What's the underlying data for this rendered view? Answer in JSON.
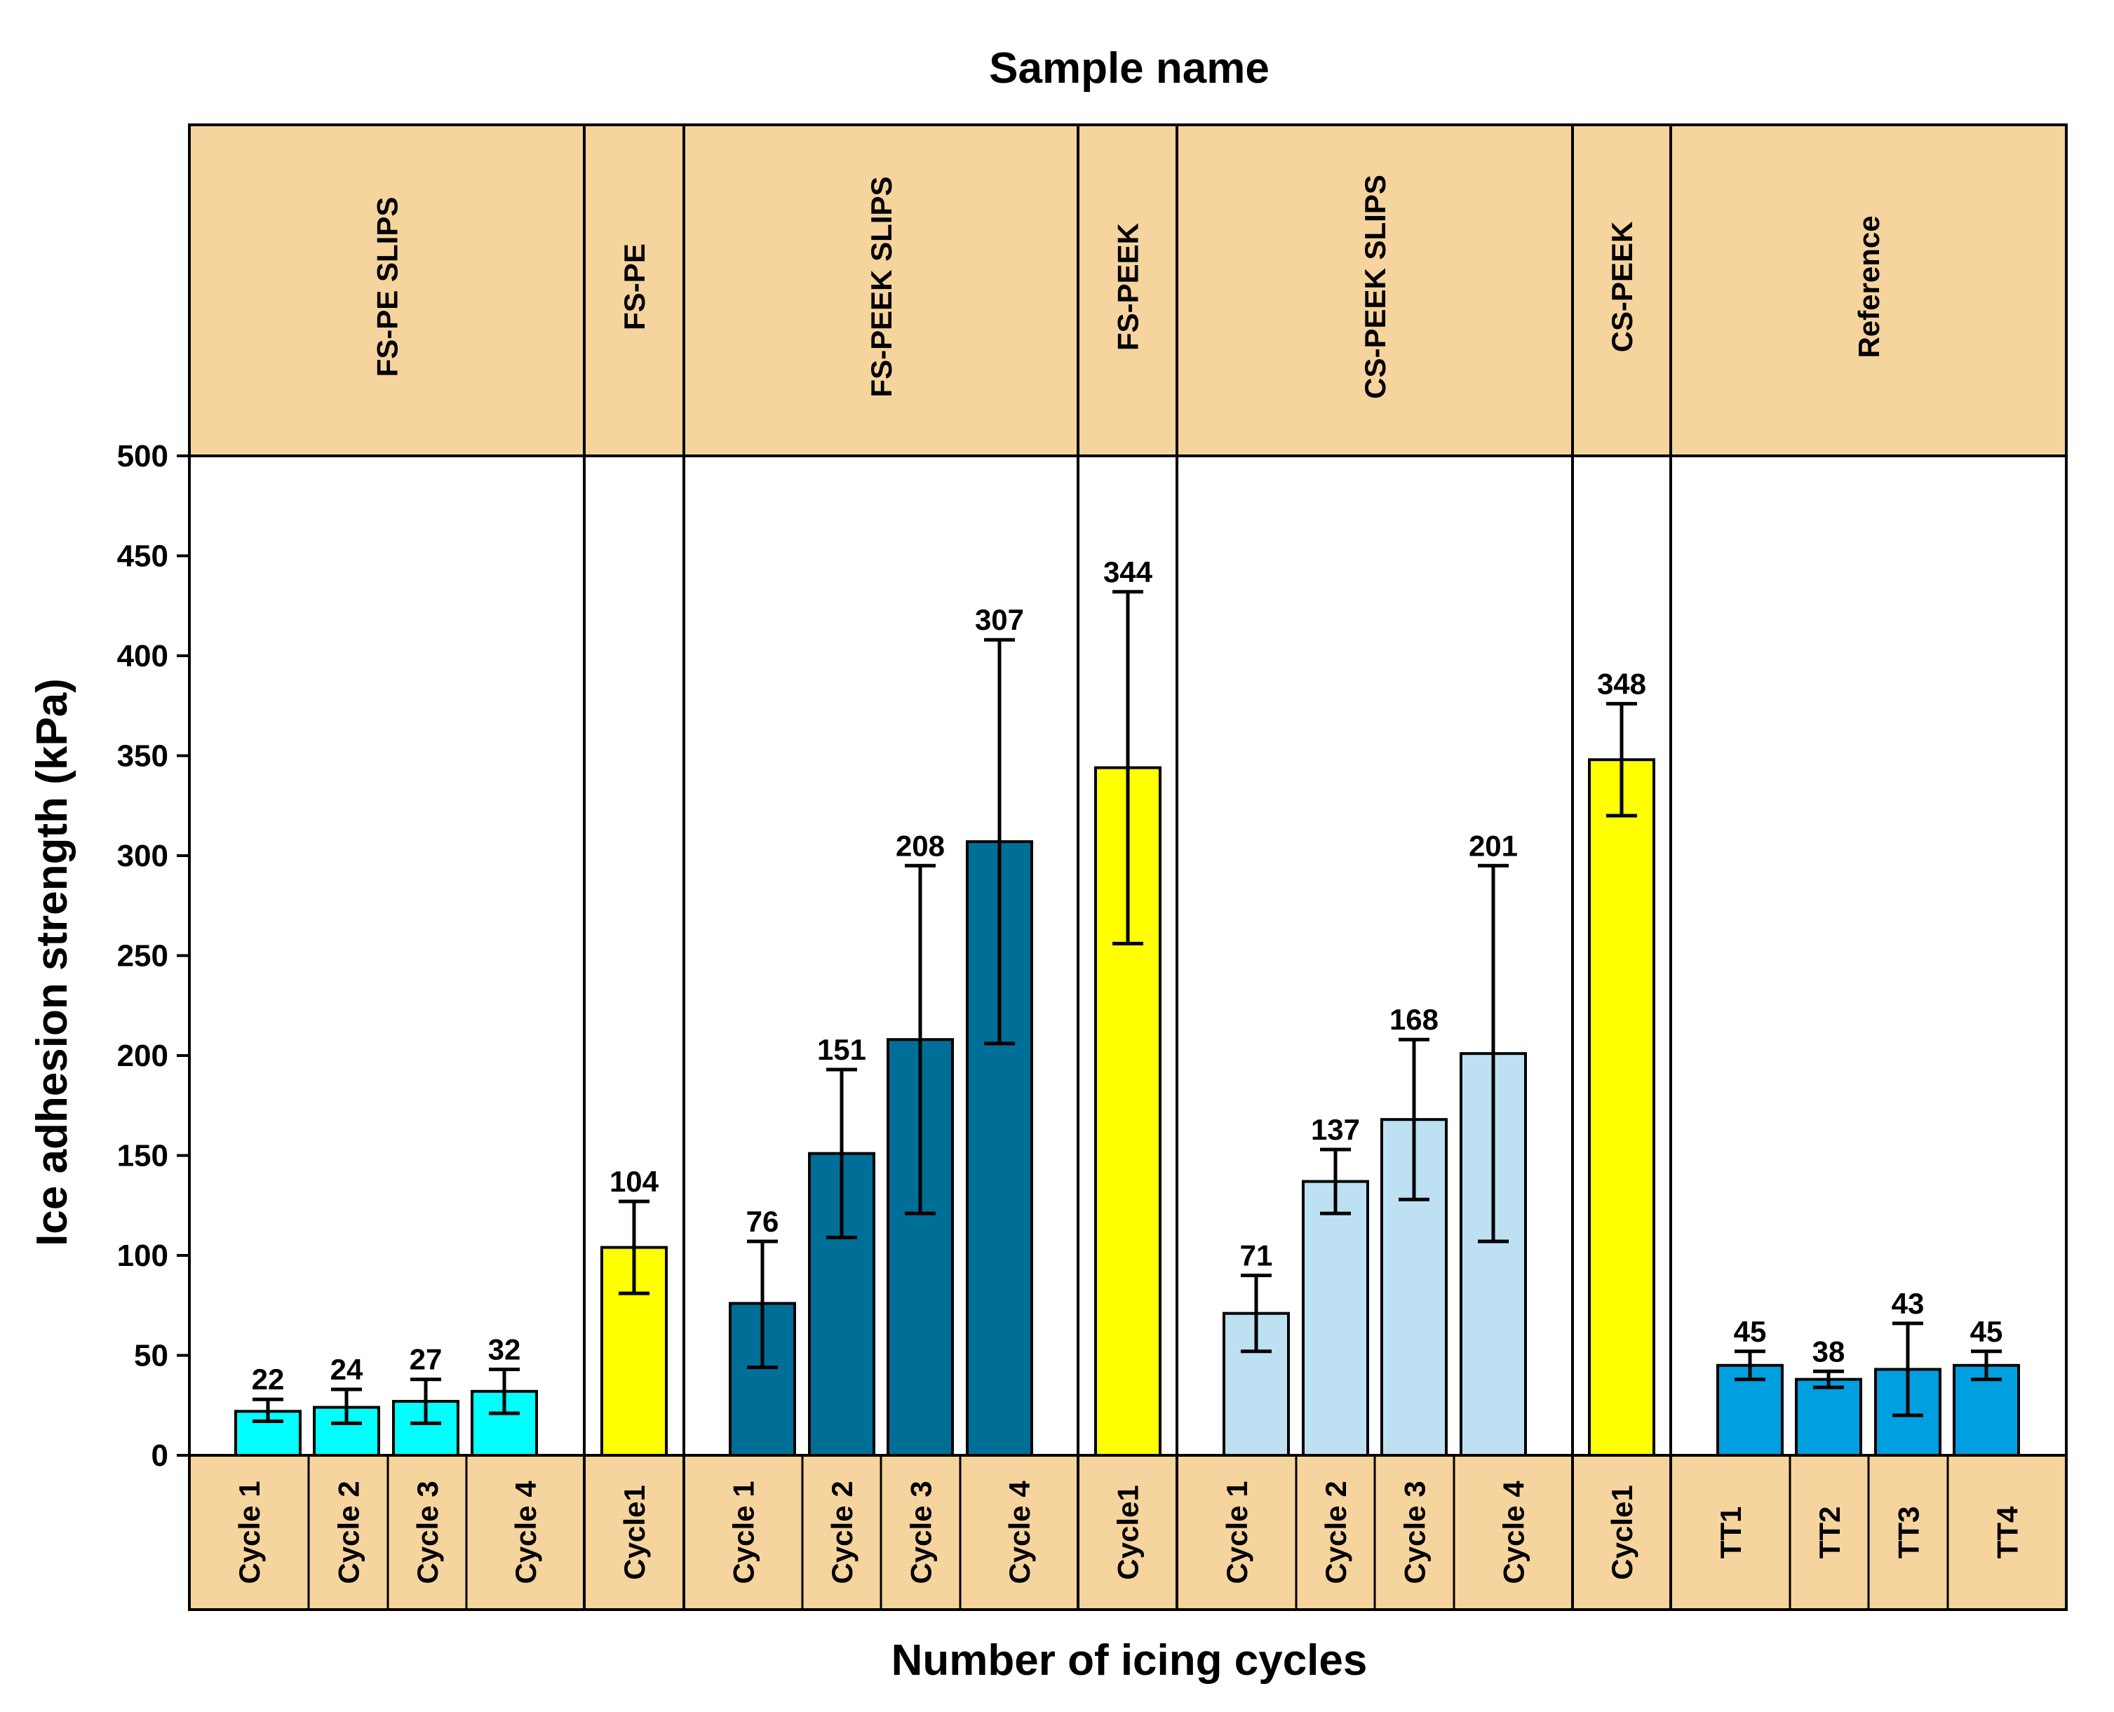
{
  "chart_data": {
    "type": "bar",
    "title": "Sample name",
    "xlabel": "Number of icing cycles",
    "ylabel": "Ice adhesion strength (kPa)",
    "ylim": [
      0,
      500
    ],
    "yticks": [
      0,
      50,
      100,
      150,
      200,
      250,
      300,
      350,
      400,
      450,
      500
    ],
    "groups": [
      {
        "name": "FS-PE SLIPS",
        "color": "#00ffff",
        "bars": [
          {
            "category": "Cycle 1",
            "value": 22,
            "err_low": 17,
            "err_high": 28
          },
          {
            "category": "Cycle 2",
            "value": 24,
            "err_low": 16,
            "err_high": 33
          },
          {
            "category": "Cycle 3",
            "value": 27,
            "err_low": 16,
            "err_high": 38
          },
          {
            "category": "Cycle 4",
            "value": 32,
            "err_low": 21,
            "err_high": 43
          }
        ]
      },
      {
        "name": "FS-PE",
        "color": "#ffff00",
        "bars": [
          {
            "category": "Cycle1",
            "value": 104,
            "err_low": 81,
            "err_high": 127
          }
        ]
      },
      {
        "name": "FS-PEEK SLIPS",
        "color": "#006f97",
        "bars": [
          {
            "category": "Cycle 1",
            "value": 76,
            "err_low": 44,
            "err_high": 107
          },
          {
            "category": "Cycle 2",
            "value": 151,
            "err_low": 109,
            "err_high": 193
          },
          {
            "category": "Cycle 3",
            "value": 208,
            "err_low": 121,
            "err_high": 295
          },
          {
            "category": "Cycle 4",
            "value": 307,
            "err_low": 206,
            "err_high": 408
          }
        ]
      },
      {
        "name": "FS-PEEK",
        "color": "#ffff00",
        "bars": [
          {
            "category": "Cycle1",
            "value": 344,
            "err_low": 256,
            "err_high": 432
          }
        ]
      },
      {
        "name": "CS-PEEK SLIPS",
        "color": "#bde1f3",
        "bars": [
          {
            "category": "Cycle 1",
            "value": 71,
            "err_low": 52,
            "err_high": 90
          },
          {
            "category": "Cycle 2",
            "value": 137,
            "err_low": 121,
            "err_high": 153
          },
          {
            "category": "Cycle 3",
            "value": 168,
            "err_low": 128,
            "err_high": 208
          },
          {
            "category": "Cycle 4",
            "value": 201,
            "err_low": 107,
            "err_high": 295
          }
        ]
      },
      {
        "name": "CS-PEEK",
        "color": "#ffff00",
        "bars": [
          {
            "category": "Cycle1",
            "value": 348,
            "err_low": 320,
            "err_high": 376
          }
        ]
      },
      {
        "name": "Reference",
        "color": "#009fe0",
        "bars": [
          {
            "category": "TT1",
            "value": 45,
            "err_low": 38,
            "err_high": 52
          },
          {
            "category": "TT2",
            "value": 38,
            "err_low": 34,
            "err_high": 42
          },
          {
            "category": "TT3",
            "value": 43,
            "err_low": 20,
            "err_high": 66
          },
          {
            "category": "TT4",
            "value": 45,
            "err_low": 38,
            "err_high": 52
          }
        ]
      }
    ]
  },
  "colors": {
    "band_fill": "#f6d49e",
    "line": "#000000"
  }
}
